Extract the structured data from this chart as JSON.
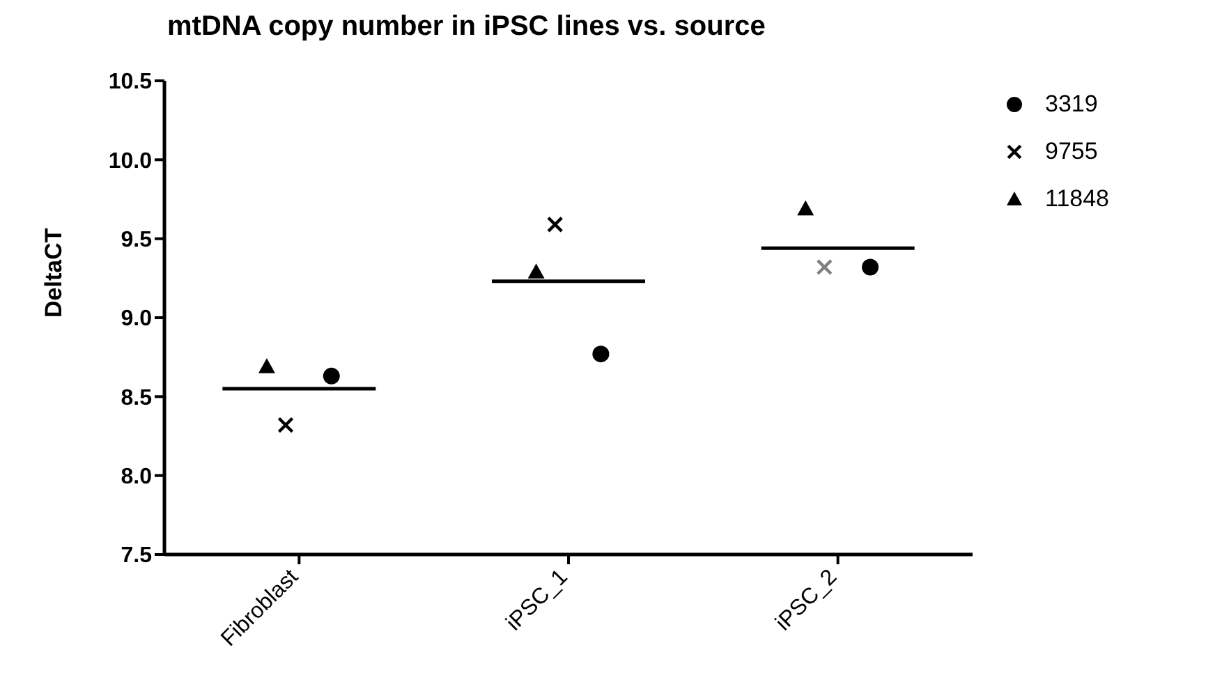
{
  "chart_data": {
    "type": "scatter",
    "title": "mtDNA copy number in iPSC lines vs. source",
    "ylabel": "DeltaCT",
    "categories": [
      "Fibroblast",
      "iPSC_1",
      "iPSC_2"
    ],
    "ylim": [
      7.5,
      10.5
    ],
    "yticks": [
      {
        "value": 7.5,
        "label": "7.5"
      },
      {
        "value": 8,
        "label": "8.0"
      },
      {
        "value": 8.5,
        "label": "8.5"
      },
      {
        "value": 9,
        "label": "9.0"
      },
      {
        "value": 9.5,
        "label": "9.5"
      },
      {
        "value": 10,
        "label": "10.0"
      },
      {
        "value": 10.5,
        "label": "10.5"
      }
    ],
    "grid": false,
    "legend": "top right",
    "series": [
      {
        "name": "3319",
        "color": "#000000",
        "marker": "circle",
        "values": [
          8.63,
          8.77,
          9.32
        ]
      },
      {
        "name": "9755",
        "color": "#000000",
        "colors": [
          "#000000",
          "#000000",
          "#808080"
        ],
        "marker": "cross",
        "values": [
          8.32,
          9.59,
          9.32
        ]
      },
      {
        "name": "11848",
        "color": "#000000",
        "marker": "triangle",
        "values": [
          8.69,
          9.29,
          9.69
        ]
      },
      {
        "type": "box",
        "color": "#000000",
        "boxes": [
          {
            "low": 8.55,
            "q1": 8.55,
            "median": 8.55,
            "q3": 8.55,
            "high": 8.55
          },
          {
            "low": 9.23,
            "q1": 9.23,
            "median": 9.23,
            "q3": 9.23,
            "high": 9.23
          },
          {
            "low": 9.44,
            "q1": 9.44,
            "median": 9.44,
            "q3": 9.44,
            "high": 9.44
          }
        ]
      }
    ]
  }
}
